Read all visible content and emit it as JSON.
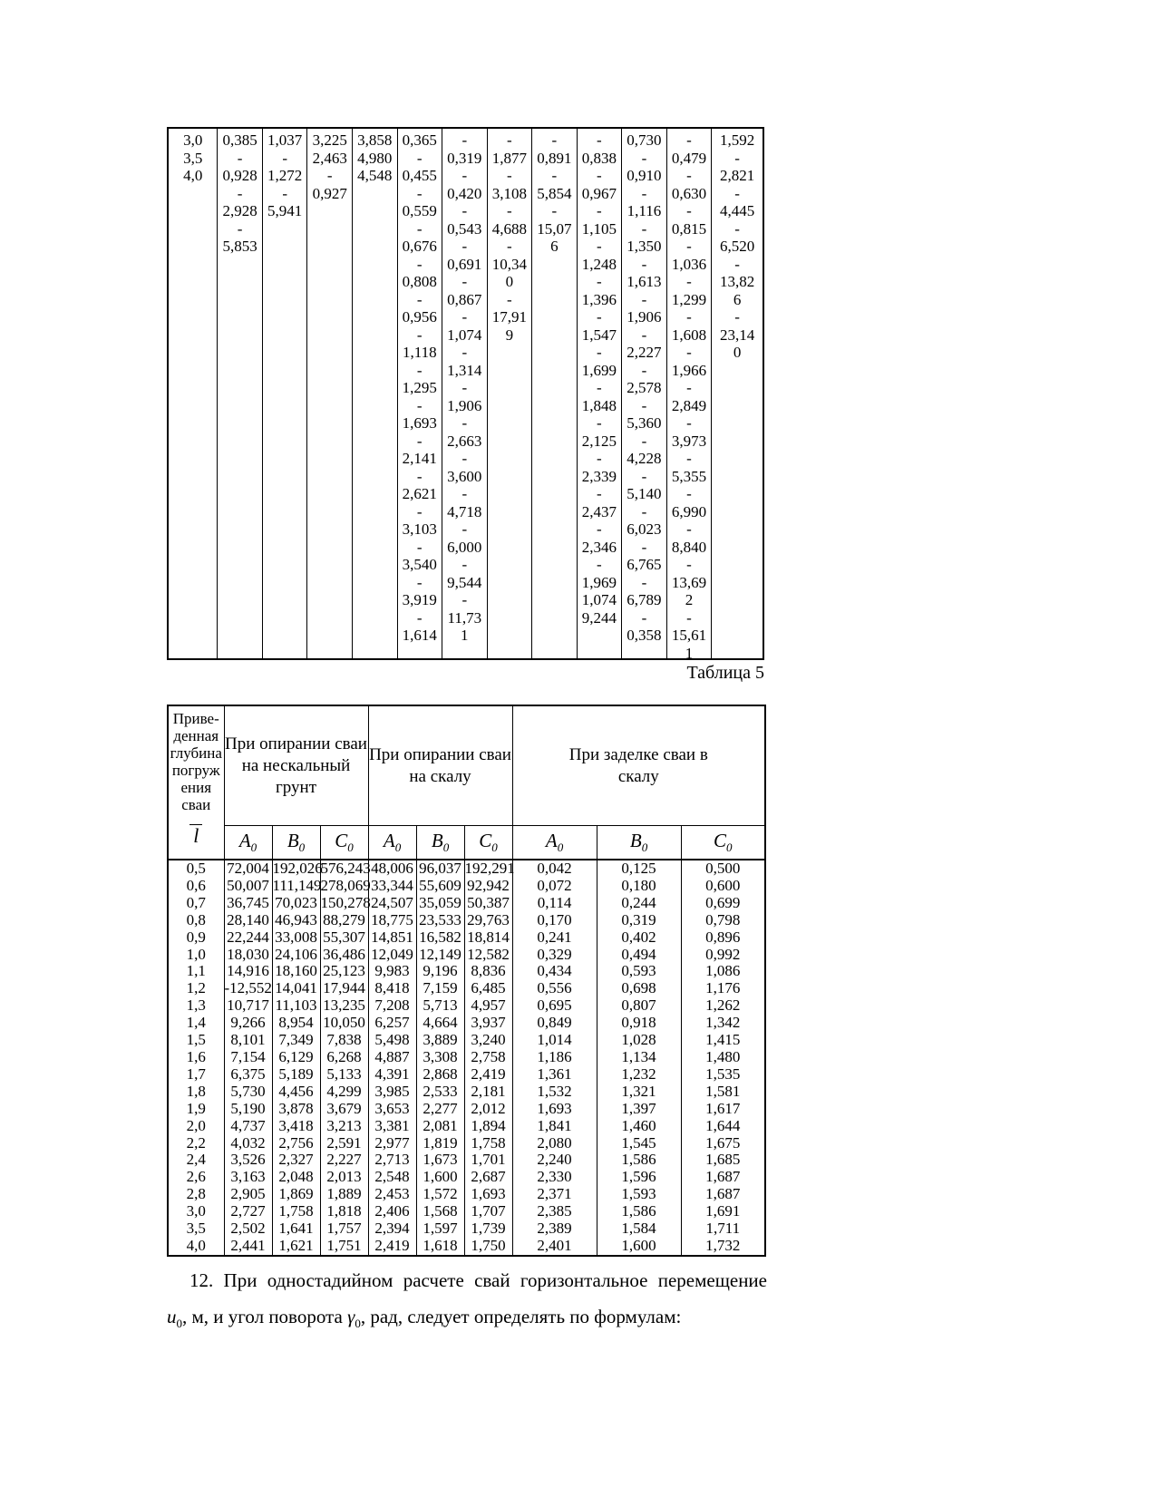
{
  "table1": {
    "columns": [
      [
        "3,0",
        "3,5",
        "4,0"
      ],
      [
        "0,385",
        "-",
        "0,928",
        "-",
        "2,928",
        "-",
        "5,853"
      ],
      [
        "1,037",
        "-",
        "1,272",
        "-",
        "5,941"
      ],
      [
        "3,225",
        "2,463",
        "-",
        "0,927"
      ],
      [
        "3,858",
        "4,980",
        "4,548"
      ],
      [
        "0,365",
        "-",
        "0,455",
        "-",
        "0,559",
        "-",
        "0,676",
        "-",
        "0,808",
        "-",
        "0,956",
        "-",
        "1,118",
        "-",
        "1,295",
        "-",
        "1,693",
        "-",
        "2,141",
        "-",
        "2,621",
        "-",
        "3,103",
        "-",
        "3,540",
        "-",
        "3,919",
        "-",
        "1,614"
      ],
      [
        "-",
        "0,319",
        "-",
        "0,420",
        "-",
        "0,543",
        "-",
        "0,691",
        "-",
        "0,867",
        "-",
        "1,074",
        "-",
        "1,314",
        "-",
        "1,906",
        "-",
        "2,663",
        "-",
        "3,600",
        "-",
        "4,718",
        "-",
        "6,000",
        "-",
        "9,544",
        "-",
        "11,73",
        "1"
      ],
      [
        "-",
        "1,877",
        "-",
        "3,108",
        "-",
        "4,688",
        "-",
        "10,34",
        "0",
        "-",
        "17,91",
        "9"
      ],
      [
        "-",
        "0,891",
        "-",
        "5,854",
        "-",
        "15,07",
        "6"
      ],
      [
        "-",
        "0,838",
        "-",
        "0,967",
        "-",
        "1,105",
        "-",
        "1,248",
        "-",
        "1,396",
        "-",
        "1,547",
        "-",
        "1,699",
        "-",
        "1,848",
        "-",
        "2,125",
        "-",
        "2,339",
        "-",
        "2,437",
        "-",
        "2,346",
        "-",
        "1,969",
        "1,074",
        "9,244"
      ],
      [
        "0,730",
        "-",
        "0,910",
        "-",
        "1,116",
        "-",
        "1,350",
        "-",
        "1,613",
        "-",
        "1,906",
        "-",
        "2,227",
        "-",
        "2,578",
        "-",
        "5,360",
        "-",
        "4,228",
        "-",
        "5,140",
        "-",
        "6,023",
        "-",
        "6,765",
        "-",
        "6,789",
        "-",
        "0,358"
      ],
      [
        "-",
        "0,479",
        "-",
        "0,630",
        "-",
        "0,815",
        "-",
        "1,036",
        "-",
        "1,299",
        "-",
        "1,608",
        "-",
        "1,966",
        "-",
        "2,849",
        "-",
        "3,973",
        "-",
        "5,355",
        "-",
        "6,990",
        "-",
        "8,840",
        "-",
        "13,69",
        "2",
        "-",
        "15,61",
        "1"
      ],
      [
        "1,592",
        "-",
        "2,821",
        "-",
        "4,445",
        "-",
        "6,520",
        "-",
        "13,82",
        "6",
        "-",
        "23,14",
        "0"
      ]
    ]
  },
  "table5": {
    "caption": "Таблица 5",
    "header_col_lines": [
      "Приве-",
      "денная",
      "глубина",
      "погруж",
      "ения",
      "сваи"
    ],
    "depth_symbol": "l",
    "groups": [
      {
        "lines": [
          "При опирании сваи",
          "на нескальный грунт"
        ]
      },
      {
        "lines": [
          "При опирании сваи",
          "на скалу"
        ]
      },
      {
        "lines": [
          "При заделке сваи в",
          "скалу"
        ]
      }
    ],
    "col_letters": [
      "A",
      "B",
      "C",
      "A",
      "B",
      "C",
      "A",
      "B",
      "C"
    ],
    "sub_zero": "0",
    "rows": [
      [
        "0,5",
        "72,004",
        "192,026",
        "576,243",
        "48,006",
        "96,037",
        "192,291",
        "0,042",
        "0,125",
        "0,500"
      ],
      [
        "0,6",
        "50,007",
        "111,149",
        "278,069",
        "33,344",
        "55,609",
        "92,942",
        "0,072",
        "0,180",
        "0,600"
      ],
      [
        "0,7",
        "36,745",
        "70,023",
        "150,278",
        "24,507",
        "35,059",
        "50,387",
        "0,114",
        "0,244",
        "0,699"
      ],
      [
        "0,8",
        "28,140",
        "46,943",
        "88,279",
        "18,775",
        "23,533",
        "29,763",
        "0,170",
        "0,319",
        "0,798"
      ],
      [
        "0,9",
        "22,244",
        "33,008",
        "55,307",
        "14,851",
        "16,582",
        "18,814",
        "0,241",
        "0,402",
        "0,896"
      ],
      [
        "1,0",
        "18,030",
        "24,106",
        "36,486",
        "12,049",
        "12,149",
        "12,582",
        "0,329",
        "0,494",
        "0,992"
      ],
      [
        "1,1",
        "14,916",
        "18,160",
        "25,123",
        "9,983",
        "9,196",
        "8,836",
        "0,434",
        "0,593",
        "1,086"
      ],
      [
        "1,2",
        "-12,552",
        "14,041",
        "17,944",
        "8,418",
        "7,159",
        "6,485",
        "0,556",
        "0,698",
        "1,176"
      ],
      [
        "1,3",
        "10,717",
        "11,103",
        "13,235",
        "7,208",
        "5,713",
        "4,957",
        "0,695",
        "0,807",
        "1,262"
      ],
      [
        "1,4",
        "9,266",
        "8,954",
        "10,050",
        "6,257",
        "4,664",
        "3,937",
        "0,849",
        "0,918",
        "1,342"
      ],
      [
        "1,5",
        "8,101",
        "7,349",
        "7,838",
        "5,498",
        "3,889",
        "3,240",
        "1,014",
        "1,028",
        "1,415"
      ],
      [
        "1,6",
        "7,154",
        "6,129",
        "6,268",
        "4,887",
        "3,308",
        "2,758",
        "1,186",
        "1,134",
        "1,480"
      ],
      [
        "1,7",
        "6,375",
        "5,189",
        "5,133",
        "4,391",
        "2,868",
        "2,419",
        "1,361",
        "1,232",
        "1,535"
      ],
      [
        "1,8",
        "5,730",
        "4,456",
        "4,299",
        "3,985",
        "2,533",
        "2,181",
        "1,532",
        "1,321",
        "1,581"
      ],
      [
        "1,9",
        "5,190",
        "3,878",
        "3,679",
        "3,653",
        "2,277",
        "2,012",
        "1,693",
        "1,397",
        "1,617"
      ],
      [
        "2,0",
        "4,737",
        "3,418",
        "3,213",
        "3,381",
        "2,081",
        "1,894",
        "1,841",
        "1,460",
        "1,644"
      ],
      [
        "2,2",
        "4,032",
        "2,756",
        "2,591",
        "2,977",
        "1,819",
        "1,758",
        "2,080",
        "1,545",
        "1,675"
      ],
      [
        "2,4",
        "3,526",
        "2,327",
        "2,227",
        "2,713",
        "1,673",
        "1,701",
        "2,240",
        "1,586",
        "1,685"
      ],
      [
        "2,6",
        "3,163",
        "2,048",
        "2,013",
        "2,548",
        "1,600",
        "2,687",
        "2,330",
        "1,596",
        "1,687"
      ],
      [
        "2,8",
        "2,905",
        "1,869",
        "1,889",
        "2,453",
        "1,572",
        "1,693",
        "2,371",
        "1,593",
        "1,687"
      ],
      [
        "3,0",
        "2,727",
        "1,758",
        "1,818",
        "2,406",
        "1,568",
        "1,707",
        "2,385",
        "1,586",
        "1,691"
      ],
      [
        "3,5",
        "2,502",
        "1,641",
        "1,757",
        "2,394",
        "1,597",
        "1,739",
        "2,389",
        "1,584",
        "1,711"
      ],
      [
        "4,0",
        "2,441",
        "1,621",
        "1,751",
        "2,419",
        "1,618",
        "1,750",
        "2,401",
        "1,600",
        "1,732"
      ]
    ]
  },
  "paragraph": {
    "part1": "12. При одностадийном расчете свай горизонтальное перемещение",
    "u_symbol": "u",
    "u_sub": "0",
    "part2": ", м, и угол поворота ",
    "psi_symbol": "γ",
    "psi_sub": "0",
    "part3": ", рад, следует определять по формулам:"
  }
}
